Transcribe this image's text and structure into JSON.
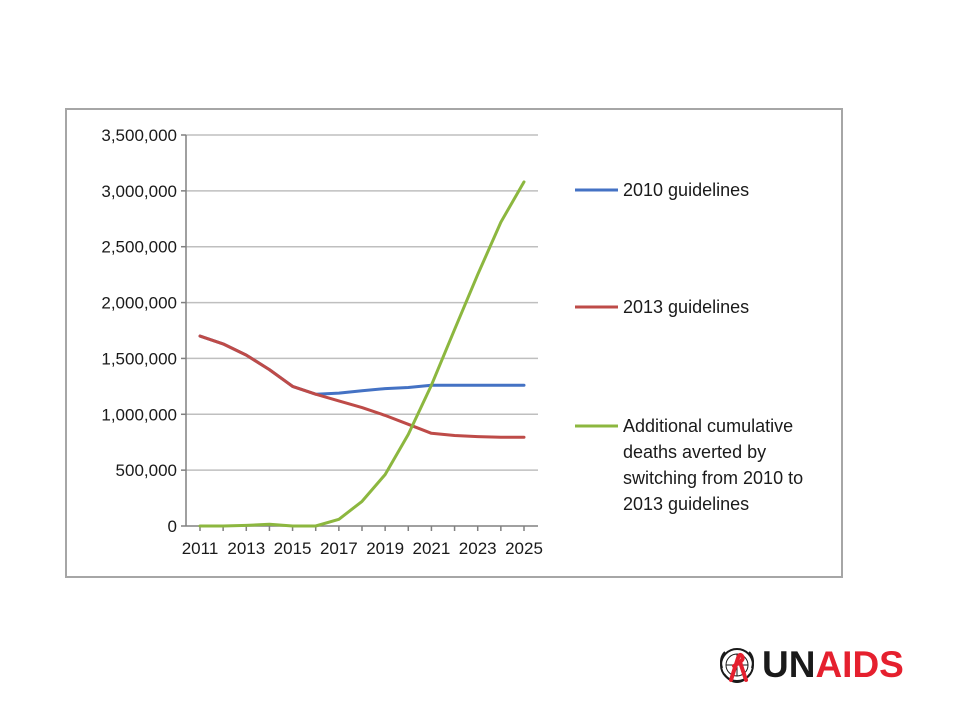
{
  "colors": {
    "series_2010": "#4472c4",
    "series_2013": "#be4b48",
    "series_additional": "#8cb73f",
    "axis": "#808080",
    "grid": "#bfbfbf",
    "logo_red": "#e5202e",
    "logo_dark": "#1a1a1a"
  },
  "logo": {
    "un": "UN",
    "aids": "AIDS",
    "icon": "un-emblem-red-ribbon-icon"
  },
  "chart_data": {
    "type": "line",
    "title": "",
    "xlabel": "",
    "ylabel": "",
    "x": [
      2011,
      2012,
      2013,
      2014,
      2015,
      2016,
      2017,
      2018,
      2019,
      2020,
      2021,
      2022,
      2023,
      2024,
      2025
    ],
    "x_tick_labels": [
      "2011",
      "2013",
      "2015",
      "2017",
      "2019",
      "2021",
      "2023",
      "2025"
    ],
    "y_tick_labels": [
      "0",
      "500,000",
      "1,000,000",
      "1,500,000",
      "2,000,000",
      "2,500,000",
      "3,000,000",
      "3,500,000"
    ],
    "ylim": [
      0,
      3500000
    ],
    "grid": "horizontal",
    "legend_position": "right",
    "series": [
      {
        "name": "2010 guidelines",
        "color_key": "series_2010",
        "values": [
          1700000,
          1630000,
          1530000,
          1400000,
          1250000,
          1180000,
          1190000,
          1210000,
          1230000,
          1240000,
          1260000,
          1260000,
          1260000,
          1260000,
          1260000
        ]
      },
      {
        "name": "2013 guidelines",
        "color_key": "series_2013",
        "values": [
          1700000,
          1630000,
          1530000,
          1400000,
          1250000,
          1180000,
          1120000,
          1060000,
          990000,
          910000,
          830000,
          810000,
          800000,
          795000,
          795000
        ]
      },
      {
        "name": "Additional cumulative deaths averted by switching from 2010 to 2013 guidelines",
        "legend_lines": [
          "Additional cumulative",
          "deaths averted by",
          "switching from 2010 to",
          "2013 guidelines"
        ],
        "color_key": "series_additional",
        "values": [
          0,
          0,
          5000,
          15000,
          0,
          0,
          60000,
          220000,
          460000,
          820000,
          1260000,
          1760000,
          2250000,
          2720000,
          3080000
        ]
      }
    ]
  }
}
